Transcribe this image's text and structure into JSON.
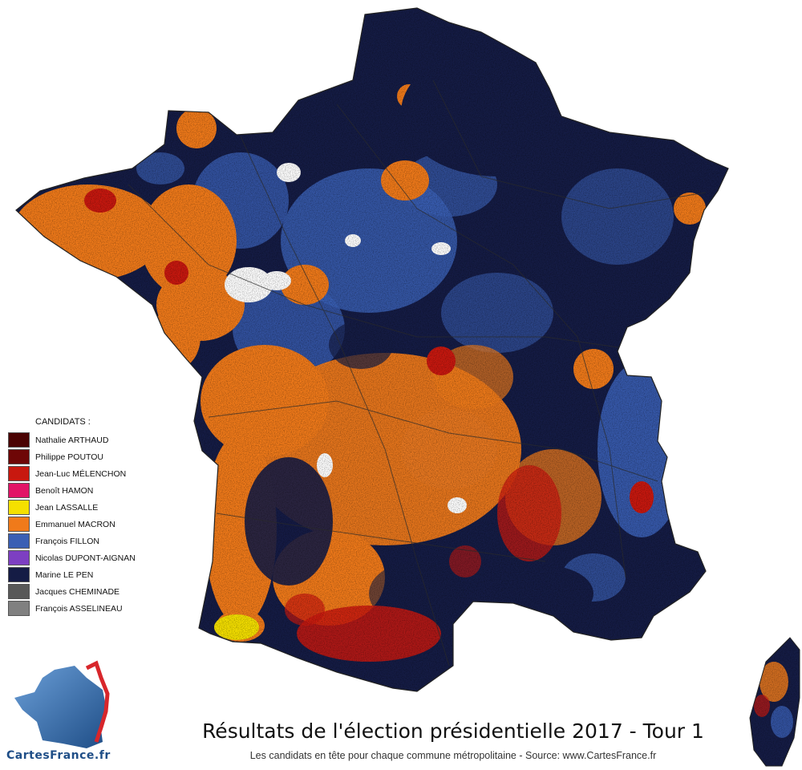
{
  "map": {
    "title": "Résultats de l'élection présidentielle 2017 - Tour 1",
    "subtitle": "Les candidats en tête pour chaque commune métropolitaine - Source: www.CartesFrance.fr",
    "logo_text": "CartesFrance.fr",
    "colors": {
      "le_pen": "#151c45",
      "macron": "#f07a1a",
      "fillon": "#3a5fb4",
      "melenchon": "#c8180f",
      "lassalle": "#f5e000",
      "borders": "#2a2a2a"
    }
  },
  "legend": {
    "title": "CANDIDATS :",
    "items": [
      {
        "label": "Nathalie ARTHAUD",
        "color": "#4a0202"
      },
      {
        "label": "Philippe POUTOU",
        "color": "#6e0606"
      },
      {
        "label": "Jean-Luc MÉLENCHON",
        "color": "#c8180f"
      },
      {
        "label": "Benoît HAMON",
        "color": "#e21366"
      },
      {
        "label": "Jean LASSALLE",
        "color": "#f5e000"
      },
      {
        "label": "Emmanuel MACRON",
        "color": "#f07a1a"
      },
      {
        "label": "François FILLON",
        "color": "#3a5fb4"
      },
      {
        "label": "Nicolas DUPONT-AIGNAN",
        "color": "#7d3fc2"
      },
      {
        "label": "Marine LE PEN",
        "color": "#151c45"
      },
      {
        "label": "Jacques CHEMINADE",
        "color": "#585858"
      },
      {
        "label": "François ASSELINEAU",
        "color": "#808080"
      }
    ]
  }
}
